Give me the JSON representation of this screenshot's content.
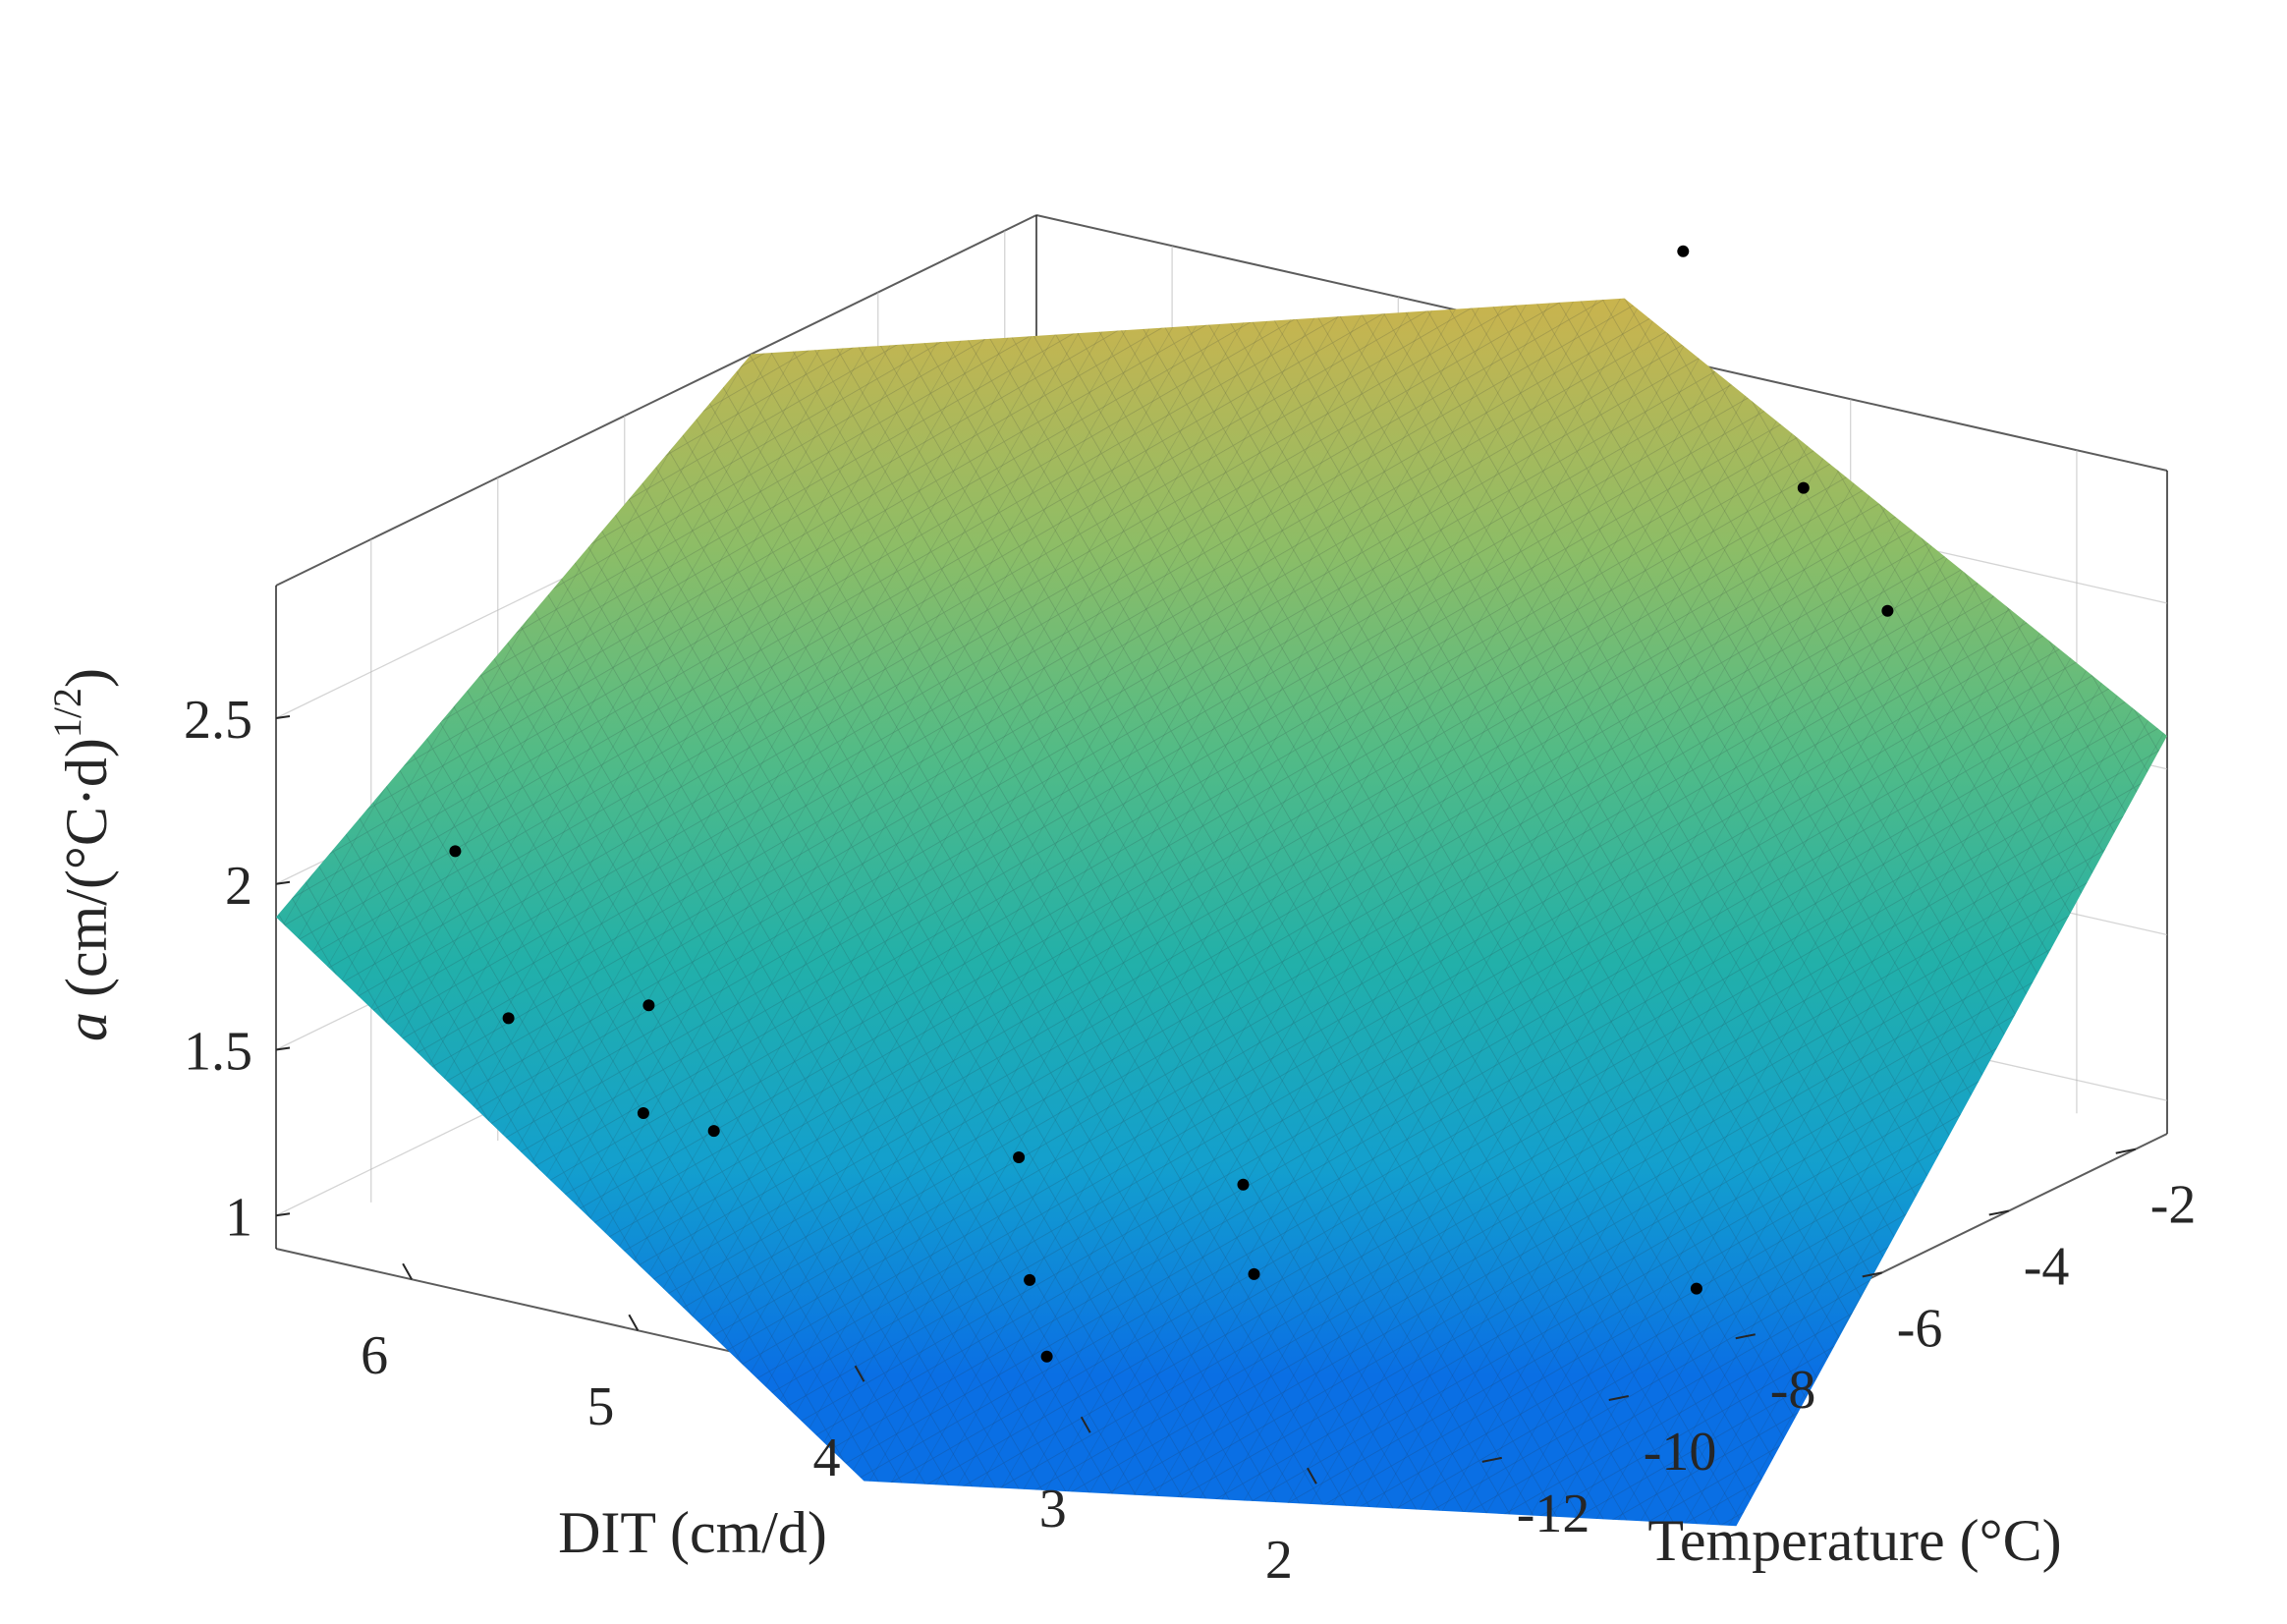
{
  "chart_data": {
    "type": "surface3d",
    "zlabel_italic": "a",
    "zlabel_rest": " (cm/(°C·d)",
    "zlabel_exp": "1/2",
    "zlabel_close": ")",
    "xlabel": "DIT (cm/d)",
    "ylabel": "Temperature (°C)",
    "x_axis": {
      "ticks": [
        2,
        3,
        4,
        5,
        6
      ],
      "labels": [
        "2",
        "3",
        "4",
        "5",
        "6"
      ]
    },
    "y_axis": {
      "ticks": [
        -12,
        -10,
        -8,
        -6,
        -4,
        -2
      ],
      "labels": [
        "-12",
        "-10",
        "-8",
        "-6",
        "-4",
        "-2"
      ]
    },
    "z_axis": {
      "ticks": [
        1,
        1.5,
        2,
        2.5
      ],
      "labels": [
        "1",
        "1.5",
        "2",
        "2.5"
      ]
    },
    "zlim": [
      0.9,
      2.9
    ],
    "surface_corner_values": [
      {
        "dit": 6.6,
        "temperature": -13.5,
        "a": 1.9
      },
      {
        "dit": 4.0,
        "temperature": -13.5,
        "a": 0.6
      },
      {
        "dit": 1.6,
        "temperature": -8.3,
        "a": 0.35
      },
      {
        "dit": 1.6,
        "temperature": -1.5,
        "a": 2.1
      },
      {
        "dit": 4.0,
        "temperature": -1.5,
        "a": 3.05
      },
      {
        "dit": 6.6,
        "temperature": -6.0,
        "a": 2.9
      }
    ],
    "surface_colormap": [
      "#0a6fe4",
      "#139fce",
      "#22b0a9",
      "#52bb86",
      "#8dbd66",
      "#c1b552",
      "#e9ae3c"
    ],
    "grid": true,
    "points": [
      {
        "dit": 5.6,
        "temperature": -13.4,
        "a": 1.74
      },
      {
        "dit": 6.2,
        "temperature": -12.1,
        "a": 2.03
      },
      {
        "dit": 5.2,
        "temperature": -12.7,
        "a": 1.45
      },
      {
        "dit": 5.4,
        "temperature": -11.9,
        "a": 1.67
      },
      {
        "dit": 5.0,
        "temperature": -12.3,
        "a": 1.39
      },
      {
        "dit": 4.1,
        "temperature": -10.7,
        "a": 1.3
      },
      {
        "dit": 3.8,
        "temperature": -11.6,
        "a": 1.06
      },
      {
        "dit": 3.5,
        "temperature": -12.4,
        "a": 0.95
      },
      {
        "dit": 3.2,
        "temperature": -10.2,
        "a": 1.04
      },
      {
        "dit": 3.5,
        "temperature": -9.3,
        "a": 1.18
      },
      {
        "dit": 2.0,
        "temperature": -7.5,
        "a": 0.93
      },
      {
        "dit": 2.9,
        "temperature": -2.6,
        "a": 2.75
      },
      {
        "dit": 2.5,
        "temperature": -2.7,
        "a": 2.45
      },
      {
        "dit": 3.6,
        "temperature": -2.0,
        "a": 3.3
      }
    ]
  }
}
